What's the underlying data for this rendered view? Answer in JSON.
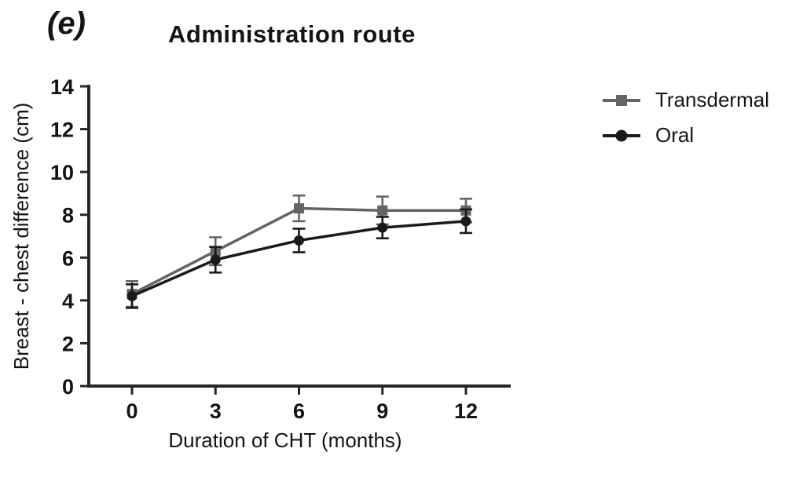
{
  "figure_label": "(e)",
  "title": "Administration route",
  "chart_data": {
    "type": "line",
    "title": "Administration route",
    "x": [
      0,
      3,
      6,
      9,
      12
    ],
    "xlabel": "Duration of CHT (months)",
    "ylabel": "Breast - chest difference (cm)",
    "ylim": [
      0,
      14
    ],
    "ytick_step": 2,
    "xticks": [
      0,
      3,
      6,
      9,
      12
    ],
    "grid": false,
    "legend_position": "right",
    "error_bars": true,
    "series": [
      {
        "name": "Transdermal",
        "marker": "square",
        "color": "#646464",
        "values": [
          4.3,
          6.3,
          8.3,
          8.2,
          8.2
        ],
        "errors": [
          0.6,
          0.65,
          0.6,
          0.65,
          0.55
        ]
      },
      {
        "name": "Oral",
        "marker": "circle",
        "color": "#1a1a1a",
        "values": [
          4.2,
          5.9,
          6.8,
          7.4,
          7.7
        ],
        "errors": [
          0.55,
          0.6,
          0.55,
          0.5,
          0.55
        ]
      }
    ]
  },
  "colors": {
    "axis": "#262626",
    "text": "#141414",
    "background": "#ffffff"
  }
}
